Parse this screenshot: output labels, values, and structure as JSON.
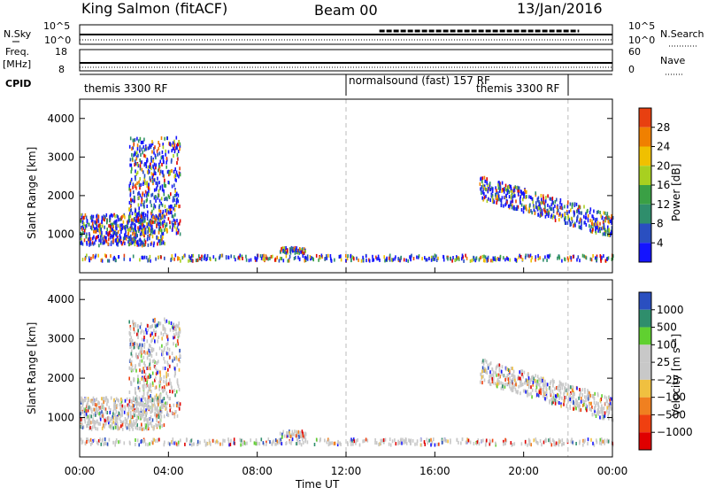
{
  "header": {
    "station": "King Salmon (fitACF)",
    "beam": "Beam 00",
    "date": "13/Jan/2016"
  },
  "strip_labels": {
    "nsky": "N.Sky",
    "nsky_ticks": [
      "10^5",
      "10^0"
    ],
    "nsearch": "N.Search",
    "nsearch_ticks": [
      "10^5",
      "10^0"
    ],
    "freq": "Freq.",
    "freq_unit": "[MHz]",
    "freq_ticks": [
      "18",
      "8"
    ],
    "nave": "Nave",
    "nave_ticks": [
      "60",
      "0"
    ],
    "cpid": "CPID"
  },
  "cpid_segments": [
    {
      "label": "themis 3300 RF"
    },
    {
      "label": "normalsound (fast) 157 RF"
    },
    {
      "label": "themis 3300 RF"
    }
  ],
  "colors": {
    "power": [
      "#1414ff",
      "#2a4fc0",
      "#2f8e6c",
      "#3aa045",
      "#a8d020",
      "#f0c000",
      "#f08000",
      "#e84010",
      "#e00000"
    ],
    "velocity": [
      "#e00000",
      "#f04010",
      "#f08020",
      "#f0c040",
      "#c8c8c8",
      "#c8c8c8",
      "#60d030",
      "#2f8e6c",
      "#2a4fc0",
      "#1414ff"
    ]
  },
  "chart_data": [
    {
      "type": "heatmap",
      "ylabel": "Slant Range [km]",
      "ylim": [
        0,
        4500
      ],
      "y_ticks": [
        "4000",
        "3000",
        "2000",
        "1000"
      ],
      "colorbar_label": "Power [dB]",
      "colorbar_ticks": [
        "28",
        "24",
        "20",
        "16",
        "12",
        "8",
        "4"
      ],
      "vlines_hours": [
        12,
        22
      ],
      "echo_regions": [
        {
          "t0": 0.0,
          "t1": 3.8,
          "r0": 700,
          "r1": 1500
        },
        {
          "t0": 2.2,
          "t1": 4.5,
          "r0": 1000,
          "r1": 3500
        },
        {
          "t0": 9.0,
          "t1": 10.2,
          "r0": 500,
          "r1": 650
        },
        {
          "t0": 18.0,
          "t1": 24.0,
          "r0": 900,
          "r1": 2300
        },
        {
          "t0": 0.0,
          "t1": 24.0,
          "r0": 300,
          "r1": 450
        }
      ]
    },
    {
      "type": "heatmap",
      "ylabel": "Slant Range [km]",
      "xlabel": "Time UT",
      "ylim": [
        0,
        4500
      ],
      "y_ticks": [
        "4000",
        "3000",
        "2000",
        "1000"
      ],
      "x_ticks": [
        "00:00",
        "04:00",
        "08:00",
        "12:00",
        "16:00",
        "20:00",
        "00:00"
      ],
      "colorbar_label": "Velocity [m s⁻¹]",
      "colorbar_ticks": [
        "1000",
        "500",
        "100",
        "25",
        "−25",
        "−100",
        "−500",
        "−1000"
      ],
      "vlines_hours": [
        12,
        22
      ]
    }
  ]
}
